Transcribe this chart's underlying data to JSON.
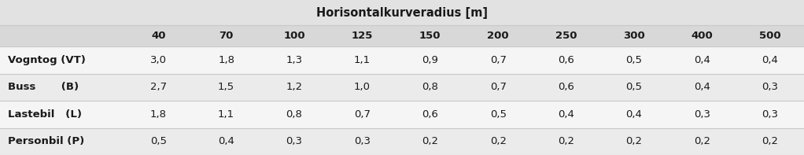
{
  "title": "Horisontalkurveradius [m]",
  "col_headers": [
    "40",
    "70",
    "100",
    "125",
    "150",
    "200",
    "250",
    "300",
    "400",
    "500"
  ],
  "row_labels": [
    "Vogntog (VT)",
    "Buss       (B)",
    "Lastebil   (L)",
    "Personbil (P)"
  ],
  "row_labels_display": [
    "Vogntog (VT)",
    "Buss       (B)",
    "Lastebil   (L)",
    "Personbil (P)"
  ],
  "values": [
    [
      "3,0",
      "1,8",
      "1,3",
      "1,1",
      "0,9",
      "0,7",
      "0,6",
      "0,5",
      "0,4",
      "0,4"
    ],
    [
      "2,7",
      "1,5",
      "1,2",
      "1,0",
      "0,8",
      "0,7",
      "0,6",
      "0,5",
      "0,4",
      "0,3"
    ],
    [
      "1,8",
      "1,1",
      "0,8",
      "0,7",
      "0,6",
      "0,5",
      "0,4",
      "0,4",
      "0,3",
      "0,3"
    ],
    [
      "0,5",
      "0,4",
      "0,3",
      "0,3",
      "0,2",
      "0,2",
      "0,2",
      "0,2",
      "0,2",
      "0,2"
    ]
  ],
  "bg_color": "#e2e2e2",
  "title_row_bg": "#e2e2e2",
  "header_row_bg": "#d8d8d8",
  "data_row_bg_odd": "#f5f5f5",
  "data_row_bg_even": "#ebebeb",
  "separator_color": "#c8c8c8",
  "text_color": "#1a1a1a",
  "figsize": [
    10.22,
    1.97
  ],
  "dpi": 100,
  "title_fontsize": 10.5,
  "header_fontsize": 9.5,
  "data_fontsize": 9.5,
  "label_fontsize": 9.5
}
